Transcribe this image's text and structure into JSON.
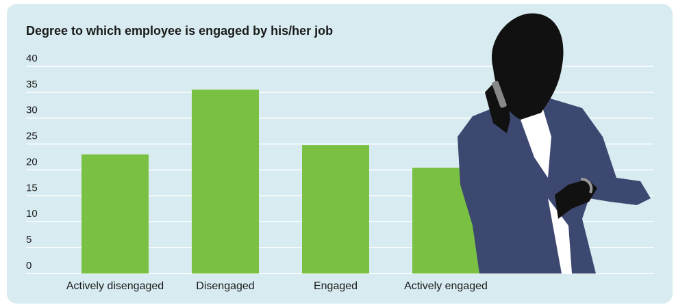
{
  "chart_data": {
    "type": "bar",
    "title": "Degree to which employee is engaged by his/her job",
    "categories": [
      "Actively disengaged",
      "Disengaged",
      "Engaged",
      "Actively engaged"
    ],
    "values": [
      23,
      35.5,
      24.8,
      20.4
    ],
    "color": "#7ac143",
    "ylim": [
      0,
      40
    ],
    "yticks": [
      0,
      5,
      10,
      15,
      20,
      25,
      30,
      35,
      40
    ],
    "grid": true
  }
}
